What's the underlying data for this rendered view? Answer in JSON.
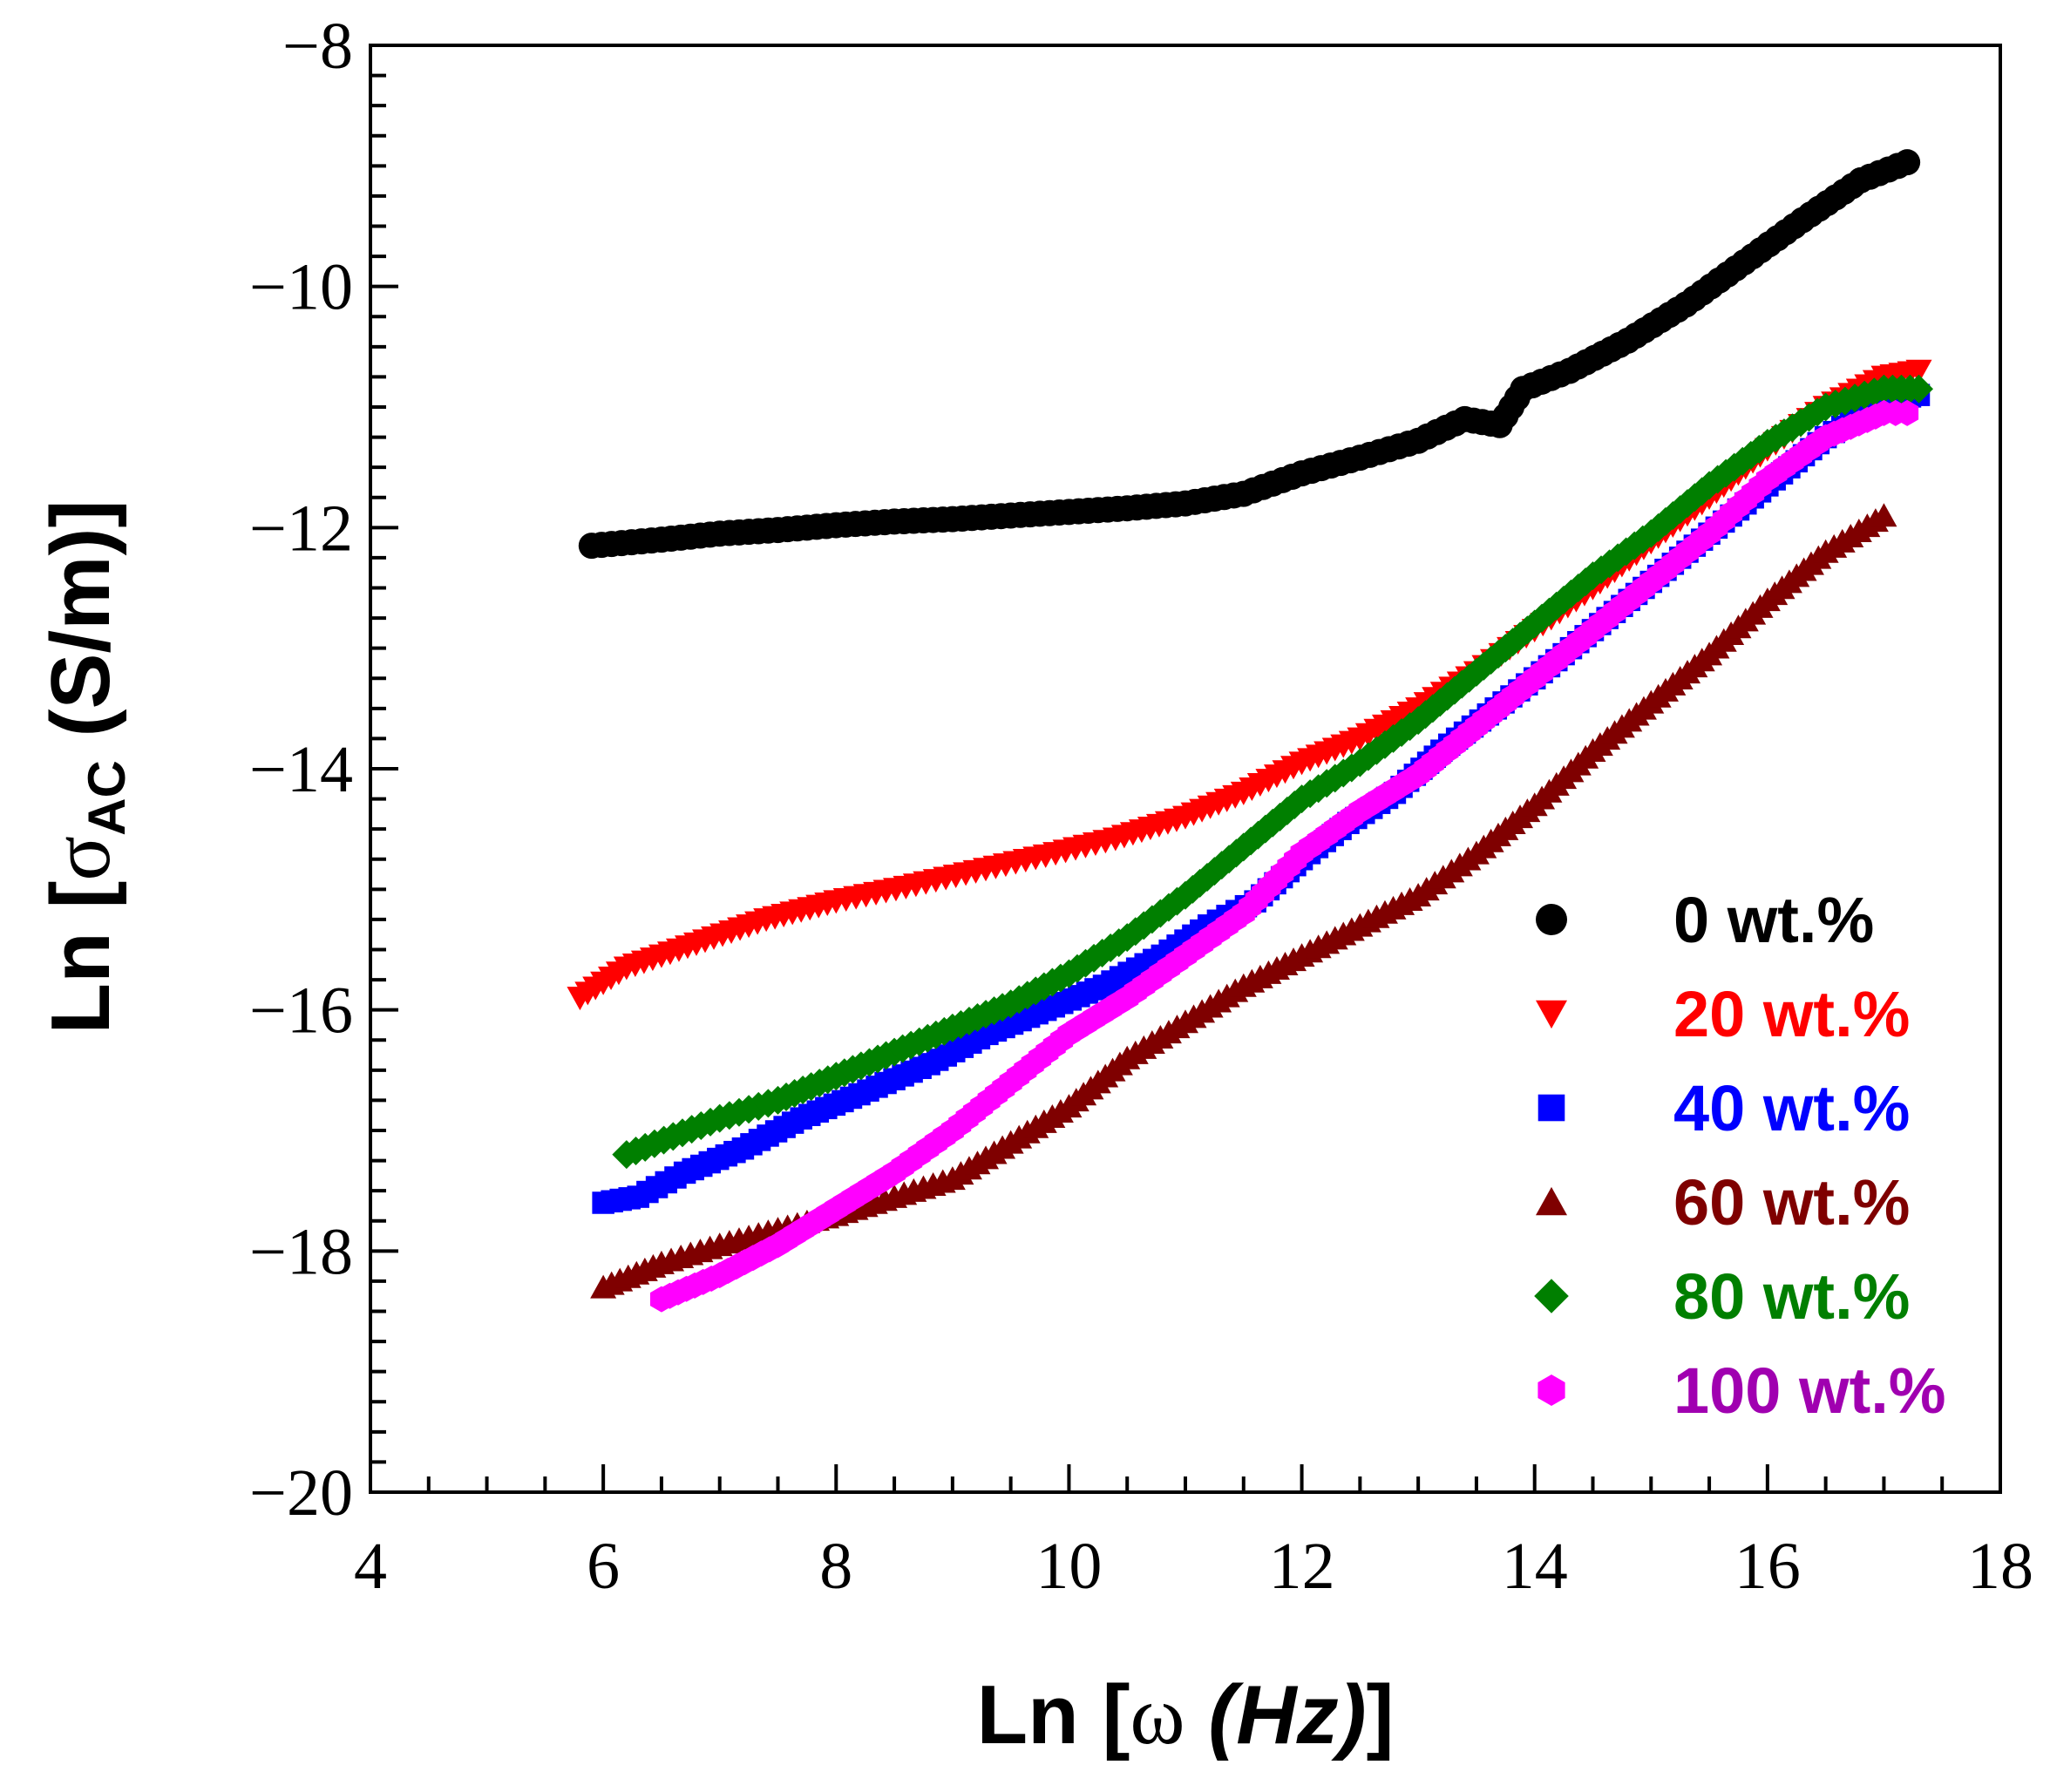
{
  "chart_data": {
    "type": "scatter",
    "title": "",
    "xlabel": "Ln [ω (Hz)]",
    "xlabel_parts": {
      "prefix": "Ln [",
      "omega": "ω",
      "space": " ",
      "unit": "(Hz)",
      "suffix": "]"
    },
    "ylabel": "Ln [σAC (S/m)]",
    "ylabel_parts": {
      "prefix": "Ln [",
      "sigma": "σ",
      "subscript": "AC",
      "suffix": " (S/m)]"
    },
    "xlim": [
      4,
      18
    ],
    "ylim": [
      -20,
      -8
    ],
    "x_ticks": [
      4,
      6,
      8,
      10,
      12,
      14,
      16,
      18
    ],
    "x_tick_labels": [
      "4",
      "6",
      "8",
      "10",
      "12",
      "14",
      "16",
      "18"
    ],
    "y_ticks": [
      -8,
      -10,
      -12,
      -14,
      -16,
      -18,
      -20
    ],
    "y_tick_labels": [
      "−8",
      "−10",
      "−12",
      "−14",
      "−16",
      "−18",
      "−20"
    ],
    "legend_position": "bottom-right",
    "grid": false,
    "series": [
      {
        "name": "0 wt.%",
        "color": "#000000",
        "label_color": "#000000",
        "marker": "circle",
        "points": [
          [
            5.9,
            -12.15
          ],
          [
            6.5,
            -12.1
          ],
          [
            7,
            -12.05
          ],
          [
            7.5,
            -12.02
          ],
          [
            8,
            -11.98
          ],
          [
            8.5,
            -11.95
          ],
          [
            9,
            -11.93
          ],
          [
            9.5,
            -11.9
          ],
          [
            10,
            -11.87
          ],
          [
            10.5,
            -11.84
          ],
          [
            11,
            -11.8
          ],
          [
            11.5,
            -11.72
          ],
          [
            12,
            -11.55
          ],
          [
            12.5,
            -11.42
          ],
          [
            13,
            -11.28
          ],
          [
            13.4,
            -11.1
          ],
          [
            13.7,
            -11.15
          ],
          [
            13.9,
            -10.85
          ],
          [
            14.3,
            -10.7
          ],
          [
            14.8,
            -10.45
          ],
          [
            15.3,
            -10.15
          ],
          [
            15.8,
            -9.8
          ],
          [
            16.3,
            -9.45
          ],
          [
            16.8,
            -9.12
          ],
          [
            17.2,
            -8.97
          ]
        ]
      },
      {
        "name": "20 wt.%",
        "color": "#ff0000",
        "label_color": "#ff0000",
        "marker": "triangle-down",
        "points": [
          [
            5.8,
            -15.9
          ],
          [
            6.2,
            -15.65
          ],
          [
            6.8,
            -15.45
          ],
          [
            7.4,
            -15.25
          ],
          [
            8,
            -15.1
          ],
          [
            8.6,
            -14.98
          ],
          [
            9.2,
            -14.85
          ],
          [
            9.8,
            -14.72
          ],
          [
            10.4,
            -14.58
          ],
          [
            11,
            -14.4
          ],
          [
            11.5,
            -14.2
          ],
          [
            12,
            -13.95
          ],
          [
            12.5,
            -13.75
          ],
          [
            13,
            -13.5
          ],
          [
            13.5,
            -13.2
          ],
          [
            14,
            -12.85
          ],
          [
            14.5,
            -12.5
          ],
          [
            15,
            -12.12
          ],
          [
            15.5,
            -11.75
          ],
          [
            16,
            -11.35
          ],
          [
            16.5,
            -11
          ],
          [
            17,
            -10.75
          ],
          [
            17.3,
            -10.7
          ]
        ]
      },
      {
        "name": "40 wt.%",
        "color": "#0000ff",
        "label_color": "#0000ff",
        "marker": "square",
        "points": [
          [
            6,
            -17.6
          ],
          [
            6.3,
            -17.55
          ],
          [
            6.7,
            -17.35
          ],
          [
            7.2,
            -17.15
          ],
          [
            7.7,
            -16.9
          ],
          [
            8.2,
            -16.7
          ],
          [
            8.8,
            -16.45
          ],
          [
            9.3,
            -16.2
          ],
          [
            9.8,
            -16
          ],
          [
            10.3,
            -15.8
          ],
          [
            10.8,
            -15.55
          ],
          [
            11.2,
            -15.3
          ],
          [
            11.6,
            -15.1
          ],
          [
            12,
            -14.75
          ],
          [
            12.4,
            -14.45
          ],
          [
            12.8,
            -14.2
          ],
          [
            13.2,
            -13.85
          ],
          [
            13.6,
            -13.55
          ],
          [
            14,
            -13.25
          ],
          [
            14.5,
            -12.85
          ],
          [
            15,
            -12.45
          ],
          [
            15.5,
            -12.05
          ],
          [
            16,
            -11.65
          ],
          [
            16.5,
            -11.25
          ],
          [
            17,
            -10.95
          ],
          [
            17.3,
            -10.9
          ]
        ]
      },
      {
        "name": "60 wt.%",
        "color": "#7f0000",
        "label_color": "#7f0000",
        "marker": "triangle-up",
        "points": [
          [
            6,
            -18.3
          ],
          [
            6.5,
            -18.1
          ],
          [
            7,
            -17.95
          ],
          [
            7.5,
            -17.82
          ],
          [
            8,
            -17.7
          ],
          [
            8.5,
            -17.55
          ],
          [
            9,
            -17.4
          ],
          [
            9.5,
            -17.1
          ],
          [
            10,
            -16.8
          ],
          [
            10.5,
            -16.4
          ],
          [
            11,
            -16.1
          ],
          [
            11.5,
            -15.8
          ],
          [
            12,
            -15.55
          ],
          [
            12.5,
            -15.3
          ],
          [
            13,
            -15.05
          ],
          [
            13.5,
            -14.7
          ],
          [
            14,
            -14.3
          ],
          [
            14.5,
            -13.85
          ],
          [
            15,
            -13.45
          ],
          [
            15.5,
            -13.05
          ],
          [
            16,
            -12.6
          ],
          [
            16.5,
            -12.2
          ],
          [
            17,
            -11.9
          ]
        ]
      },
      {
        "name": "80 wt.%",
        "color": "#007f00",
        "label_color": "#007f00",
        "marker": "diamond",
        "points": [
          [
            6.2,
            -17.2
          ],
          [
            6.6,
            -17.05
          ],
          [
            7,
            -16.9
          ],
          [
            7.5,
            -16.75
          ],
          [
            8,
            -16.55
          ],
          [
            8.5,
            -16.35
          ],
          [
            9,
            -16.15
          ],
          [
            9.5,
            -15.95
          ],
          [
            10,
            -15.7
          ],
          [
            10.5,
            -15.4
          ],
          [
            11,
            -15.05
          ],
          [
            11.5,
            -14.65
          ],
          [
            12,
            -14.25
          ],
          [
            12.5,
            -13.95
          ],
          [
            13,
            -13.6
          ],
          [
            13.5,
            -13.2
          ],
          [
            14,
            -12.8
          ],
          [
            14.5,
            -12.4
          ],
          [
            15,
            -12.05
          ],
          [
            15.5,
            -11.65
          ],
          [
            16,
            -11.3
          ],
          [
            16.5,
            -11
          ],
          [
            17,
            -10.85
          ],
          [
            17.3,
            -10.85
          ]
        ]
      },
      {
        "name": "100 wt.%",
        "color": "#ff00ff",
        "label_color": "#a000b0",
        "marker": "hexagon",
        "points": [
          [
            6.5,
            -18.4
          ],
          [
            7,
            -18.2
          ],
          [
            7.5,
            -17.95
          ],
          [
            8,
            -17.65
          ],
          [
            8.5,
            -17.35
          ],
          [
            9,
            -17
          ],
          [
            9.5,
            -16.6
          ],
          [
            10,
            -16.2
          ],
          [
            10.5,
            -15.9
          ],
          [
            11,
            -15.55
          ],
          [
            11.5,
            -15.2
          ],
          [
            12,
            -14.7
          ],
          [
            12.5,
            -14.35
          ],
          [
            13,
            -14.05
          ],
          [
            13.5,
            -13.65
          ],
          [
            14,
            -13.25
          ],
          [
            14.5,
            -12.85
          ],
          [
            15,
            -12.45
          ],
          [
            15.5,
            -12.05
          ],
          [
            16,
            -11.6
          ],
          [
            16.5,
            -11.25
          ],
          [
            17,
            -11.05
          ],
          [
            17.2,
            -11.05
          ]
        ]
      }
    ]
  }
}
